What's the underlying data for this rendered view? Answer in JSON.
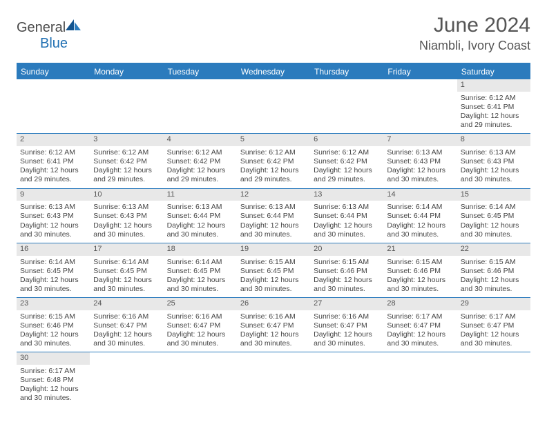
{
  "logo": {
    "general": "General",
    "blue": "Blue"
  },
  "header": {
    "month": "June 2024",
    "location": "Niambli, Ivory Coast"
  },
  "colors": {
    "brand_blue": "#2b7bbd",
    "header_text": "#555555",
    "logo_gray": "#4a4a4a",
    "daynum_bg": "#e8e8e8"
  },
  "daynames": [
    "Sunday",
    "Monday",
    "Tuesday",
    "Wednesday",
    "Thursday",
    "Friday",
    "Saturday"
  ],
  "weeks": [
    [
      {
        "day": "",
        "empty": true
      },
      {
        "day": "",
        "empty": true
      },
      {
        "day": "",
        "empty": true
      },
      {
        "day": "",
        "empty": true
      },
      {
        "day": "",
        "empty": true
      },
      {
        "day": "",
        "empty": true
      },
      {
        "day": "1",
        "sunrise": "Sunrise: 6:12 AM",
        "sunset": "Sunset: 6:41 PM",
        "daylight1": "Daylight: 12 hours",
        "daylight2": "and 29 minutes."
      }
    ],
    [
      {
        "day": "2",
        "sunrise": "Sunrise: 6:12 AM",
        "sunset": "Sunset: 6:41 PM",
        "daylight1": "Daylight: 12 hours",
        "daylight2": "and 29 minutes."
      },
      {
        "day": "3",
        "sunrise": "Sunrise: 6:12 AM",
        "sunset": "Sunset: 6:42 PM",
        "daylight1": "Daylight: 12 hours",
        "daylight2": "and 29 minutes."
      },
      {
        "day": "4",
        "sunrise": "Sunrise: 6:12 AM",
        "sunset": "Sunset: 6:42 PM",
        "daylight1": "Daylight: 12 hours",
        "daylight2": "and 29 minutes."
      },
      {
        "day": "5",
        "sunrise": "Sunrise: 6:12 AM",
        "sunset": "Sunset: 6:42 PM",
        "daylight1": "Daylight: 12 hours",
        "daylight2": "and 29 minutes."
      },
      {
        "day": "6",
        "sunrise": "Sunrise: 6:12 AM",
        "sunset": "Sunset: 6:42 PM",
        "daylight1": "Daylight: 12 hours",
        "daylight2": "and 29 minutes."
      },
      {
        "day": "7",
        "sunrise": "Sunrise: 6:13 AM",
        "sunset": "Sunset: 6:43 PM",
        "daylight1": "Daylight: 12 hours",
        "daylight2": "and 30 minutes."
      },
      {
        "day": "8",
        "sunrise": "Sunrise: 6:13 AM",
        "sunset": "Sunset: 6:43 PM",
        "daylight1": "Daylight: 12 hours",
        "daylight2": "and 30 minutes."
      }
    ],
    [
      {
        "day": "9",
        "sunrise": "Sunrise: 6:13 AM",
        "sunset": "Sunset: 6:43 PM",
        "daylight1": "Daylight: 12 hours",
        "daylight2": "and 30 minutes."
      },
      {
        "day": "10",
        "sunrise": "Sunrise: 6:13 AM",
        "sunset": "Sunset: 6:43 PM",
        "daylight1": "Daylight: 12 hours",
        "daylight2": "and 30 minutes."
      },
      {
        "day": "11",
        "sunrise": "Sunrise: 6:13 AM",
        "sunset": "Sunset: 6:44 PM",
        "daylight1": "Daylight: 12 hours",
        "daylight2": "and 30 minutes."
      },
      {
        "day": "12",
        "sunrise": "Sunrise: 6:13 AM",
        "sunset": "Sunset: 6:44 PM",
        "daylight1": "Daylight: 12 hours",
        "daylight2": "and 30 minutes."
      },
      {
        "day": "13",
        "sunrise": "Sunrise: 6:13 AM",
        "sunset": "Sunset: 6:44 PM",
        "daylight1": "Daylight: 12 hours",
        "daylight2": "and 30 minutes."
      },
      {
        "day": "14",
        "sunrise": "Sunrise: 6:14 AM",
        "sunset": "Sunset: 6:44 PM",
        "daylight1": "Daylight: 12 hours",
        "daylight2": "and 30 minutes."
      },
      {
        "day": "15",
        "sunrise": "Sunrise: 6:14 AM",
        "sunset": "Sunset: 6:45 PM",
        "daylight1": "Daylight: 12 hours",
        "daylight2": "and 30 minutes."
      }
    ],
    [
      {
        "day": "16",
        "sunrise": "Sunrise: 6:14 AM",
        "sunset": "Sunset: 6:45 PM",
        "daylight1": "Daylight: 12 hours",
        "daylight2": "and 30 minutes."
      },
      {
        "day": "17",
        "sunrise": "Sunrise: 6:14 AM",
        "sunset": "Sunset: 6:45 PM",
        "daylight1": "Daylight: 12 hours",
        "daylight2": "and 30 minutes."
      },
      {
        "day": "18",
        "sunrise": "Sunrise: 6:14 AM",
        "sunset": "Sunset: 6:45 PM",
        "daylight1": "Daylight: 12 hours",
        "daylight2": "and 30 minutes."
      },
      {
        "day": "19",
        "sunrise": "Sunrise: 6:15 AM",
        "sunset": "Sunset: 6:45 PM",
        "daylight1": "Daylight: 12 hours",
        "daylight2": "and 30 minutes."
      },
      {
        "day": "20",
        "sunrise": "Sunrise: 6:15 AM",
        "sunset": "Sunset: 6:46 PM",
        "daylight1": "Daylight: 12 hours",
        "daylight2": "and 30 minutes."
      },
      {
        "day": "21",
        "sunrise": "Sunrise: 6:15 AM",
        "sunset": "Sunset: 6:46 PM",
        "daylight1": "Daylight: 12 hours",
        "daylight2": "and 30 minutes."
      },
      {
        "day": "22",
        "sunrise": "Sunrise: 6:15 AM",
        "sunset": "Sunset: 6:46 PM",
        "daylight1": "Daylight: 12 hours",
        "daylight2": "and 30 minutes."
      }
    ],
    [
      {
        "day": "23",
        "sunrise": "Sunrise: 6:15 AM",
        "sunset": "Sunset: 6:46 PM",
        "daylight1": "Daylight: 12 hours",
        "daylight2": "and 30 minutes."
      },
      {
        "day": "24",
        "sunrise": "Sunrise: 6:16 AM",
        "sunset": "Sunset: 6:47 PM",
        "daylight1": "Daylight: 12 hours",
        "daylight2": "and 30 minutes."
      },
      {
        "day": "25",
        "sunrise": "Sunrise: 6:16 AM",
        "sunset": "Sunset: 6:47 PM",
        "daylight1": "Daylight: 12 hours",
        "daylight2": "and 30 minutes."
      },
      {
        "day": "26",
        "sunrise": "Sunrise: 6:16 AM",
        "sunset": "Sunset: 6:47 PM",
        "daylight1": "Daylight: 12 hours",
        "daylight2": "and 30 minutes."
      },
      {
        "day": "27",
        "sunrise": "Sunrise: 6:16 AM",
        "sunset": "Sunset: 6:47 PM",
        "daylight1": "Daylight: 12 hours",
        "daylight2": "and 30 minutes."
      },
      {
        "day": "28",
        "sunrise": "Sunrise: 6:17 AM",
        "sunset": "Sunset: 6:47 PM",
        "daylight1": "Daylight: 12 hours",
        "daylight2": "and 30 minutes."
      },
      {
        "day": "29",
        "sunrise": "Sunrise: 6:17 AM",
        "sunset": "Sunset: 6:47 PM",
        "daylight1": "Daylight: 12 hours",
        "daylight2": "and 30 minutes."
      }
    ],
    [
      {
        "day": "30",
        "sunrise": "Sunrise: 6:17 AM",
        "sunset": "Sunset: 6:48 PM",
        "daylight1": "Daylight: 12 hours",
        "daylight2": "and 30 minutes."
      },
      {
        "day": "",
        "empty": true
      },
      {
        "day": "",
        "empty": true
      },
      {
        "day": "",
        "empty": true
      },
      {
        "day": "",
        "empty": true
      },
      {
        "day": "",
        "empty": true
      },
      {
        "day": "",
        "empty": true
      }
    ]
  ]
}
